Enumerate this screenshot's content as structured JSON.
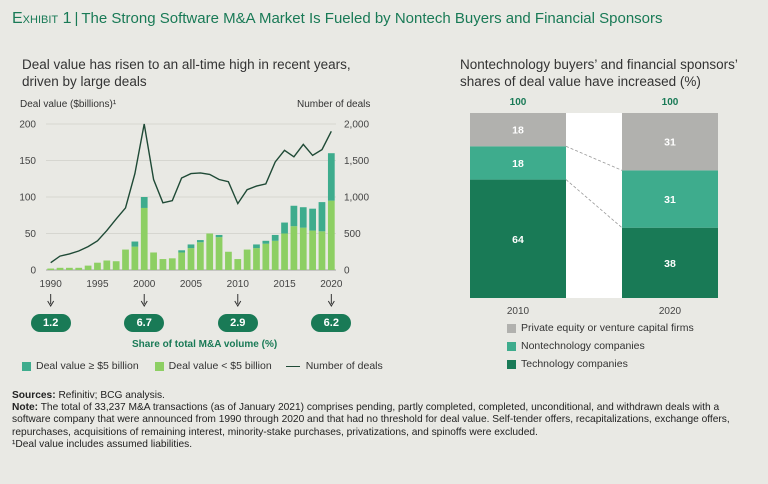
{
  "header": {
    "exhibit": "Exhibit 1",
    "title": "The Strong Software M&A Market Is Fueled by Nontech Buyers and Financial Sponsors"
  },
  "colors": {
    "dark_green": "#197a56",
    "teal": "#3eac8d",
    "light_green": "#8dcf63",
    "grey": "#b1b1ae",
    "line": "#1f4a36"
  },
  "left": {
    "subtitle_line1": "Deal value has risen to an all-time high in recent years,",
    "subtitle_line2": "driven by large deals",
    "y_left_label": "Deal value ($billions)¹",
    "y_right_label": "Number of deals",
    "share_label": "Share of total M&A volume (%)",
    "legend": {
      "large": "Deal value ≥ $5 billion",
      "small": "Deal value < $5 billion",
      "line": "Number of deals"
    }
  },
  "right": {
    "subtitle_line1": "Nontechnology buyers’ and financial sponsors’",
    "subtitle_line2": "shares of deal value have increased (%)",
    "legend": {
      "pe": "Private equity or venture capital firms",
      "nontech": "Nontechnology companies",
      "tech": "Technology companies"
    }
  },
  "footer": {
    "sources_label": "Sources:",
    "sources_text": "Refinitiv; BCG analysis.",
    "note_label": "Note:",
    "note_text": "The total of 33,237 M&A transactions (as of January 2021) comprises pending, partly completed, completed, unconditional, and withdrawn deals with a software company that were announced from 1990 through 2020 and that had no threshold for deal value. Self-tender offers, recapitalizations, exchange offers, repurchases, acquisitions of remaining interest, minority-stake purchases, privatizations, and spinoffs were excluded.",
    "footnote": "¹Deal value includes assumed liabilities."
  },
  "chart_data": [
    {
      "type": "bar",
      "title": "Deal value has risen to an all-time high in recent years, driven by large deals",
      "xlabel": "",
      "ylabel": "Deal value ($billions)¹",
      "y2label": "Number of deals",
      "ylim": [
        0,
        200
      ],
      "y2lim": [
        0,
        2000
      ],
      "yticks": [
        "0",
        "50",
        "100",
        "150",
        "200"
      ],
      "y2ticks": [
        "0",
        "500",
        "1,000",
        "1,500",
        "2,000"
      ],
      "xticks": [
        "1990",
        "1995",
        "2000",
        "2005",
        "2010",
        "2015",
        "2020"
      ],
      "years": [
        1990,
        1991,
        1992,
        1993,
        1994,
        1995,
        1996,
        1997,
        1998,
        1999,
        2000,
        2001,
        2002,
        2003,
        2004,
        2005,
        2006,
        2007,
        2008,
        2009,
        2010,
        2011,
        2012,
        2013,
        2014,
        2015,
        2016,
        2017,
        2018,
        2019,
        2020
      ],
      "series": [
        {
          "name": "Deal value < $5 billion",
          "stack": true,
          "values": [
            2,
            3,
            3,
            3,
            6,
            10,
            13,
            12,
            28,
            32,
            85,
            24,
            15,
            16,
            24,
            30,
            38,
            50,
            45,
            25,
            15,
            28,
            30,
            36,
            40,
            50,
            60,
            58,
            54,
            53,
            95
          ]
        },
        {
          "name": "Deal value ≥ $5 billion",
          "stack": true,
          "values": [
            0,
            0,
            0,
            0,
            0,
            0,
            0,
            0,
            0,
            7,
            15,
            0,
            0,
            0,
            3,
            5,
            3,
            0,
            3,
            0,
            0,
            0,
            5,
            4,
            8,
            15,
            28,
            28,
            30,
            40,
            65
          ]
        },
        {
          "name": "Number of deals",
          "type": "line",
          "axis": "right",
          "values": [
            100,
            190,
            220,
            260,
            320,
            400,
            540,
            700,
            850,
            1320,
            2000,
            1240,
            920,
            950,
            1260,
            1320,
            1330,
            1310,
            1240,
            1210,
            910,
            1100,
            1150,
            1180,
            1480,
            1640,
            1550,
            1720,
            1570,
            1650,
            1900
          ]
        }
      ],
      "share_of_total_ma_volume": [
        {
          "year": "1990",
          "value": "1.2"
        },
        {
          "year": "2000",
          "value": "6.7"
        },
        {
          "year": "2010",
          "value": "2.9"
        },
        {
          "year": "2020",
          "value": "6.2"
        }
      ]
    },
    {
      "type": "bar",
      "stacked": true,
      "title": "Nontechnology buyers’ and financial sponsors’ shares of deal value have increased (%)",
      "categories": [
        "2010",
        "2020"
      ],
      "totals": [
        "100",
        "100"
      ],
      "ylim": [
        0,
        100
      ],
      "series": [
        {
          "name": "Technology companies",
          "values": [
            64,
            38
          ]
        },
        {
          "name": "Nontechnology companies",
          "values": [
            18,
            31
          ]
        },
        {
          "name": "Private equity or venture capital firms",
          "values": [
            18,
            31
          ]
        }
      ]
    }
  ]
}
